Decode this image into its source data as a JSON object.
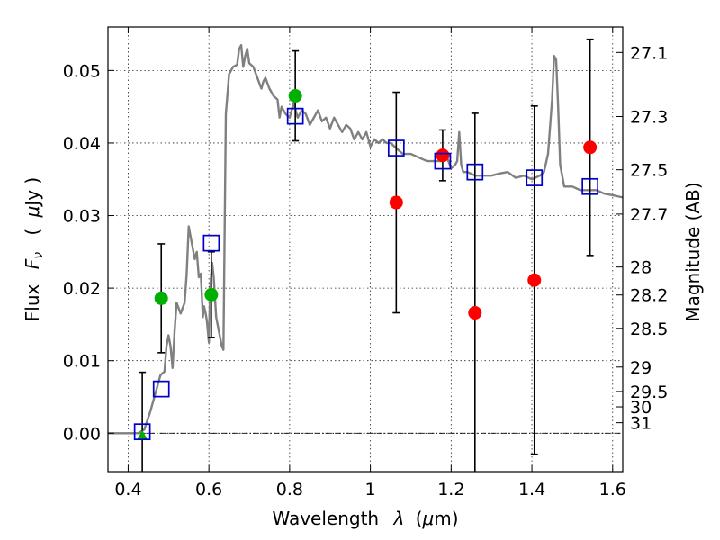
{
  "chart_data": {
    "type": "scatter",
    "xlabel_text": "Wavelength",
    "xlabel_symbol": "λ",
    "xlabel_unit_open": "(",
    "xlabel_unit_mu": "μ",
    "xlabel_unit_rest": "m)",
    "ylabel_text": "Flux",
    "ylabel_symbol": "F",
    "ylabel_subscript": "ν",
    "ylabel_unit_open": "(",
    "ylabel_unit_mu": "μ",
    "ylabel_unit_rest": "Jy )",
    "y2label": "Magnitude (AB)",
    "xlim": [
      0.35,
      1.625
    ],
    "ylim": [
      -0.0053,
      0.056
    ],
    "x_ticks": [
      {
        "value": 0.4,
        "label": "0.4"
      },
      {
        "value": 0.6,
        "label": "0.6"
      },
      {
        "value": 0.8,
        "label": "0.8"
      },
      {
        "value": 1.0,
        "label": "1"
      },
      {
        "value": 1.2,
        "label": "1.2"
      },
      {
        "value": 1.4,
        "label": "1.4"
      },
      {
        "value": 1.6,
        "label": "1.6"
      }
    ],
    "y_ticks": [
      {
        "value": 0.0,
        "label": "0.00"
      },
      {
        "value": 0.01,
        "label": "0.01"
      },
      {
        "value": 0.02,
        "label": "0.02"
      },
      {
        "value": 0.03,
        "label": "0.03"
      },
      {
        "value": 0.04,
        "label": "0.04"
      },
      {
        "value": 0.05,
        "label": "0.05"
      }
    ],
    "mag_ticks": [
      {
        "mag": 27.1,
        "label": "27.1"
      },
      {
        "mag": 27.3,
        "label": "27.3"
      },
      {
        "mag": 27.5,
        "label": "27.5"
      },
      {
        "mag": 27.7,
        "label": "27.7"
      },
      {
        "mag": 28.0,
        "label": "28"
      },
      {
        "mag": 28.2,
        "label": "28.2"
      },
      {
        "mag": 28.5,
        "label": "28.5"
      },
      {
        "mag": 29.0,
        "label": "29"
      },
      {
        "mag": 29.5,
        "label": "29.5"
      },
      {
        "mag": 30.0,
        "label": "30"
      },
      {
        "mag": 31.0,
        "label": "31"
      }
    ],
    "zero_line": 0.0,
    "colors": {
      "model": "#808080",
      "hst": "#00b000",
      "ir": "#ff0000",
      "model_phot": "#0000cc",
      "errorbar": "#000000"
    },
    "model_spectrum": [
      [
        0.35,
        0.0
      ],
      [
        0.425,
        0.0
      ],
      [
        0.44,
        0.0005
      ],
      [
        0.455,
        0.003
      ],
      [
        0.47,
        0.006
      ],
      [
        0.48,
        0.008
      ],
      [
        0.49,
        0.0085
      ],
      [
        0.495,
        0.012
      ],
      [
        0.5,
        0.0135
      ],
      [
        0.505,
        0.012
      ],
      [
        0.51,
        0.009
      ],
      [
        0.515,
        0.014
      ],
      [
        0.52,
        0.018
      ],
      [
        0.53,
        0.0165
      ],
      [
        0.54,
        0.018
      ],
      [
        0.545,
        0.022
      ],
      [
        0.55,
        0.0285
      ],
      [
        0.555,
        0.027
      ],
      [
        0.56,
        0.0255
      ],
      [
        0.565,
        0.024
      ],
      [
        0.57,
        0.025
      ],
      [
        0.575,
        0.0215
      ],
      [
        0.58,
        0.022
      ],
      [
        0.585,
        0.016
      ],
      [
        0.588,
        0.0175
      ],
      [
        0.592,
        0.0165
      ],
      [
        0.595,
        0.0155
      ],
      [
        0.6,
        0.0125
      ],
      [
        0.603,
        0.02
      ],
      [
        0.608,
        0.0235
      ],
      [
        0.612,
        0.0215
      ],
      [
        0.618,
        0.016
      ],
      [
        0.625,
        0.014
      ],
      [
        0.632,
        0.012
      ],
      [
        0.636,
        0.0115
      ],
      [
        0.642,
        0.044
      ],
      [
        0.65,
        0.0495
      ],
      [
        0.66,
        0.0505
      ],
      [
        0.67,
        0.0508
      ],
      [
        0.675,
        0.053
      ],
      [
        0.68,
        0.0535
      ],
      [
        0.685,
        0.0505
      ],
      [
        0.69,
        0.052
      ],
      [
        0.695,
        0.053
      ],
      [
        0.7,
        0.051
      ],
      [
        0.71,
        0.0505
      ],
      [
        0.72,
        0.049
      ],
      [
        0.73,
        0.0475
      ],
      [
        0.735,
        0.0485
      ],
      [
        0.74,
        0.049
      ],
      [
        0.75,
        0.0475
      ],
      [
        0.76,
        0.0465
      ],
      [
        0.77,
        0.046
      ],
      [
        0.775,
        0.0435
      ],
      [
        0.78,
        0.045
      ],
      [
        0.79,
        0.044
      ],
      [
        0.8,
        0.0435
      ],
      [
        0.81,
        0.0455
      ],
      [
        0.82,
        0.0435
      ],
      [
        0.83,
        0.0445
      ],
      [
        0.84,
        0.044
      ],
      [
        0.85,
        0.0425
      ],
      [
        0.86,
        0.0435
      ],
      [
        0.87,
        0.0445
      ],
      [
        0.88,
        0.043
      ],
      [
        0.89,
        0.0435
      ],
      [
        0.9,
        0.042
      ],
      [
        0.91,
        0.0435
      ],
      [
        0.92,
        0.0425
      ],
      [
        0.93,
        0.0415
      ],
      [
        0.94,
        0.0425
      ],
      [
        0.95,
        0.042
      ],
      [
        0.96,
        0.0405
      ],
      [
        0.97,
        0.0415
      ],
      [
        0.98,
        0.0405
      ],
      [
        0.99,
        0.0415
      ],
      [
        1.0,
        0.0395
      ],
      [
        1.01,
        0.0405
      ],
      [
        1.02,
        0.04
      ],
      [
        1.03,
        0.0405
      ],
      [
        1.04,
        0.04
      ],
      [
        1.05,
        0.04
      ],
      [
        1.06,
        0.0395
      ],
      [
        1.08,
        0.0385
      ],
      [
        1.1,
        0.0385
      ],
      [
        1.12,
        0.038
      ],
      [
        1.14,
        0.0375
      ],
      [
        1.16,
        0.0375
      ],
      [
        1.18,
        0.0375
      ],
      [
        1.19,
        0.038
      ],
      [
        1.2,
        0.0365
      ],
      [
        1.21,
        0.037
      ],
      [
        1.215,
        0.0375
      ],
      [
        1.22,
        0.0415
      ],
      [
        1.225,
        0.037
      ],
      [
        1.23,
        0.036
      ],
      [
        1.24,
        0.036
      ],
      [
        1.26,
        0.0355
      ],
      [
        1.28,
        0.0355
      ],
      [
        1.3,
        0.0355
      ],
      [
        1.32,
        0.0358
      ],
      [
        1.34,
        0.036
      ],
      [
        1.36,
        0.0352
      ],
      [
        1.38,
        0.0355
      ],
      [
        1.4,
        0.035
      ],
      [
        1.42,
        0.0355
      ],
      [
        1.43,
        0.036
      ],
      [
        1.44,
        0.0385
      ],
      [
        1.45,
        0.046
      ],
      [
        1.455,
        0.052
      ],
      [
        1.46,
        0.0515
      ],
      [
        1.465,
        0.045
      ],
      [
        1.47,
        0.037
      ],
      [
        1.48,
        0.034
      ],
      [
        1.5,
        0.034
      ],
      [
        1.52,
        0.0335
      ],
      [
        1.54,
        0.0335
      ],
      [
        1.56,
        0.0335
      ],
      [
        1.58,
        0.033
      ],
      [
        1.6,
        0.0328
      ],
      [
        1.625,
        0.0325
      ]
    ],
    "hst_points": [
      {
        "x": 0.482,
        "y": 0.0186,
        "err": 0.0075
      },
      {
        "x": 0.606,
        "y": 0.0191,
        "err": 0.0059
      },
      {
        "x": 0.814,
        "y": 0.0465,
        "err": 0.0062
      }
    ],
    "hst_upper_limit": {
      "x": 0.435,
      "y": -0.0003,
      "err": 0.0087
    },
    "ir_points": [
      {
        "x": 1.064,
        "y": 0.0318,
        "err": 0.0152
      },
      {
        "x": 1.179,
        "y": 0.0383,
        "err": 0.0035
      },
      {
        "x": 1.259,
        "y": 0.0166,
        "err": 0.0275
      },
      {
        "x": 1.406,
        "y": 0.0211,
        "err": 0.024
      },
      {
        "x": 1.544,
        "y": 0.0394,
        "err": 0.0149
      }
    ],
    "model_photometry": [
      {
        "x": 0.435,
        "y": 0.0002
      },
      {
        "x": 0.482,
        "y": 0.0061
      },
      {
        "x": 0.606,
        "y": 0.0262
      },
      {
        "x": 0.814,
        "y": 0.0437
      },
      {
        "x": 1.064,
        "y": 0.0393
      },
      {
        "x": 1.179,
        "y": 0.0375
      },
      {
        "x": 1.259,
        "y": 0.036
      },
      {
        "x": 1.406,
        "y": 0.0352
      },
      {
        "x": 1.544,
        "y": 0.034
      }
    ]
  }
}
